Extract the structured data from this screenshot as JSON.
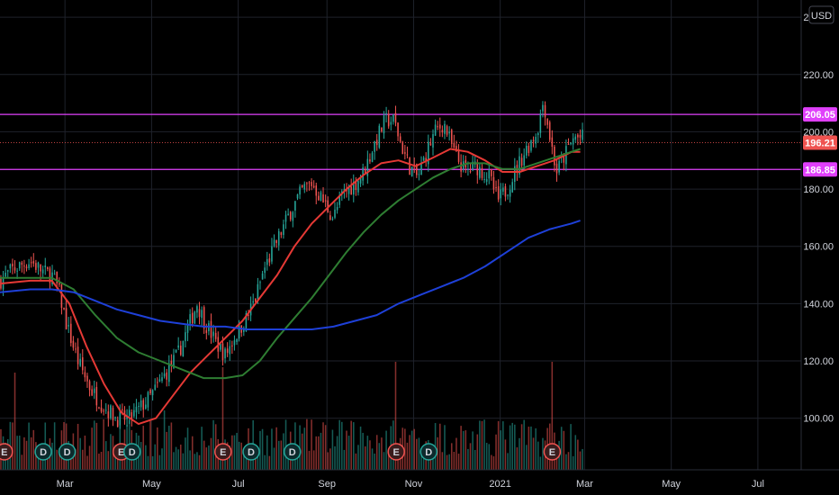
{
  "chart_data": {
    "type": "candlestick",
    "currency": "USD",
    "y_ticks": [
      100,
      120,
      140,
      160,
      180,
      200,
      220,
      240
    ],
    "y_tick_labels": [
      "100.00",
      "120.00",
      "140.00",
      "160.00",
      "180.00",
      "200.00",
      "220.00",
      "240.00"
    ],
    "x_ticks": [
      {
        "label": "Mar",
        "t": 0.3
      },
      {
        "label": "May",
        "t": 2.3
      },
      {
        "label": "Jul",
        "t": 4.3
      },
      {
        "label": "Sep",
        "t": 6.35
      },
      {
        "label": "Nov",
        "t": 8.35
      },
      {
        "label": "2021",
        "t": 10.35
      },
      {
        "label": "Mar",
        "t": 12.3
      },
      {
        "label": "May",
        "t": 14.3
      },
      {
        "label": "Jul",
        "t": 16.3
      }
    ],
    "ylim": [
      82,
      246
    ],
    "xlim": [
      -1.2,
      17.3
    ],
    "price_keypoints": [
      [
        -1.2,
        148
      ],
      [
        -0.9,
        152
      ],
      [
        -0.5,
        155
      ],
      [
        -0.2,
        151
      ],
      [
        0.0,
        150
      ],
      [
        0.15,
        145
      ],
      [
        0.35,
        132
      ],
      [
        0.6,
        120
      ],
      [
        0.9,
        110
      ],
      [
        1.2,
        104
      ],
      [
        1.5,
        100
      ],
      [
        1.8,
        100
      ],
      [
        2.0,
        103
      ],
      [
        2.3,
        108
      ],
      [
        2.6,
        115
      ],
      [
        2.9,
        122
      ],
      [
        3.1,
        130
      ],
      [
        3.35,
        140
      ],
      [
        3.55,
        133
      ],
      [
        3.8,
        126
      ],
      [
        4.0,
        122
      ],
      [
        4.2,
        128
      ],
      [
        4.5,
        135
      ],
      [
        4.7,
        142
      ],
      [
        4.9,
        152
      ],
      [
        5.2,
        162
      ],
      [
        5.5,
        172
      ],
      [
        5.8,
        180
      ],
      [
        6.0,
        182
      ],
      [
        6.25,
        176
      ],
      [
        6.5,
        170
      ],
      [
        6.7,
        178
      ],
      [
        7.0,
        182
      ],
      [
        7.2,
        186
      ],
      [
        7.45,
        196
      ],
      [
        7.7,
        204
      ],
      [
        7.9,
        204
      ],
      [
        8.05,
        196
      ],
      [
        8.25,
        188
      ],
      [
        8.45,
        184
      ],
      [
        8.65,
        193
      ],
      [
        8.85,
        200
      ],
      [
        9.05,
        203
      ],
      [
        9.3,
        192
      ],
      [
        9.55,
        186
      ],
      [
        9.8,
        188
      ],
      [
        10.1,
        184
      ],
      [
        10.3,
        176
      ],
      [
        10.5,
        180
      ],
      [
        10.75,
        188
      ],
      [
        10.95,
        194
      ],
      [
        11.2,
        200
      ],
      [
        11.35,
        211
      ],
      [
        11.5,
        198
      ],
      [
        11.65,
        186
      ],
      [
        11.85,
        192
      ],
      [
        12.05,
        198
      ],
      [
        12.25,
        198
      ]
    ],
    "series": [
      {
        "name": "",
        "color": "#e53935",
        "kind": "ma",
        "points": [
          [
            -1.2,
            147
          ],
          [
            -0.5,
            148
          ],
          [
            0.0,
            148
          ],
          [
            0.4,
            140
          ],
          [
            0.8,
            125
          ],
          [
            1.2,
            112
          ],
          [
            1.6,
            102
          ],
          [
            2.0,
            98
          ],
          [
            2.4,
            100
          ],
          [
            2.8,
            108
          ],
          [
            3.2,
            116
          ],
          [
            3.6,
            122
          ],
          [
            4.0,
            128
          ],
          [
            4.4,
            134
          ],
          [
            4.8,
            142
          ],
          [
            5.2,
            150
          ],
          [
            5.6,
            160
          ],
          [
            6.0,
            168
          ],
          [
            6.4,
            174
          ],
          [
            6.8,
            180
          ],
          [
            7.2,
            185
          ],
          [
            7.6,
            189
          ],
          [
            8.0,
            190
          ],
          [
            8.4,
            188
          ],
          [
            8.8,
            191
          ],
          [
            9.2,
            194
          ],
          [
            9.6,
            193
          ],
          [
            10.0,
            190
          ],
          [
            10.4,
            186
          ],
          [
            10.8,
            186
          ],
          [
            11.2,
            188
          ],
          [
            11.6,
            190
          ],
          [
            12.0,
            193
          ],
          [
            12.2,
            193
          ]
        ]
      },
      {
        "name": "",
        "color": "#2e7d32",
        "kind": "ma",
        "points": [
          [
            -1.2,
            149
          ],
          [
            -0.5,
            149
          ],
          [
            0.0,
            149
          ],
          [
            0.5,
            145
          ],
          [
            1.0,
            136
          ],
          [
            1.5,
            128
          ],
          [
            2.0,
            123
          ],
          [
            2.5,
            120
          ],
          [
            3.0,
            117
          ],
          [
            3.5,
            114
          ],
          [
            4.0,
            114
          ],
          [
            4.4,
            115
          ],
          [
            4.8,
            120
          ],
          [
            5.2,
            128
          ],
          [
            5.6,
            135
          ],
          [
            6.0,
            142
          ],
          [
            6.4,
            150
          ],
          [
            6.8,
            158
          ],
          [
            7.2,
            165
          ],
          [
            7.6,
            171
          ],
          [
            8.0,
            176
          ],
          [
            8.4,
            180
          ],
          [
            8.8,
            184
          ],
          [
            9.2,
            187
          ],
          [
            9.6,
            189
          ],
          [
            10.0,
            189
          ],
          [
            10.4,
            187
          ],
          [
            10.8,
            187
          ],
          [
            11.2,
            189
          ],
          [
            11.6,
            191
          ],
          [
            12.0,
            193
          ],
          [
            12.2,
            194
          ]
        ]
      },
      {
        "name": "",
        "color": "#1e40d8",
        "kind": "ma",
        "points": [
          [
            -1.2,
            144
          ],
          [
            -0.5,
            145
          ],
          [
            0.0,
            145
          ],
          [
            0.5,
            144
          ],
          [
            1.0,
            141
          ],
          [
            1.5,
            138
          ],
          [
            2.0,
            136
          ],
          [
            2.5,
            134
          ],
          [
            3.0,
            133
          ],
          [
            3.5,
            132
          ],
          [
            4.0,
            132
          ],
          [
            4.5,
            131
          ],
          [
            5.0,
            131
          ],
          [
            5.5,
            131
          ],
          [
            6.0,
            131
          ],
          [
            6.5,
            132
          ],
          [
            7.0,
            134
          ],
          [
            7.5,
            136
          ],
          [
            8.0,
            140
          ],
          [
            8.5,
            143
          ],
          [
            9.0,
            146
          ],
          [
            9.5,
            149
          ],
          [
            10.0,
            153
          ],
          [
            10.5,
            158
          ],
          [
            11.0,
            163
          ],
          [
            11.5,
            166
          ],
          [
            12.0,
            168
          ],
          [
            12.2,
            169
          ]
        ]
      }
    ],
    "horizontal_lines": [
      {
        "value": 206.05,
        "label": "206.05",
        "color": "#e040fb",
        "kind": "level"
      },
      {
        "value": 186.85,
        "label": "186.85",
        "color": "#e040fb",
        "kind": "level"
      },
      {
        "value": 196.21,
        "label": "196.21",
        "color": "#ef5350",
        "kind": "last"
      }
    ],
    "events": [
      {
        "type": "E",
        "t": -1.1
      },
      {
        "type": "D",
        "t": -0.2
      },
      {
        "type": "D",
        "t": 0.35
      },
      {
        "type": "E",
        "t": 1.6
      },
      {
        "type": "D",
        "t": 1.85
      },
      {
        "type": "E",
        "t": 3.95
      },
      {
        "type": "D",
        "t": 4.6
      },
      {
        "type": "D",
        "t": 5.55
      },
      {
        "type": "E",
        "t": 7.95
      },
      {
        "type": "D",
        "t": 8.7
      },
      {
        "type": "E",
        "t": 11.55
      }
    ],
    "volume_spikes": [
      [
        -0.85,
        0.9
      ],
      [
        3.95,
        0.95
      ],
      [
        7.95,
        1.0
      ],
      [
        10.3,
        0.45
      ],
      [
        11.55,
        1.0
      ],
      [
        2.6,
        0.55
      ]
    ],
    "candle_count": 250,
    "candle_t_end": 12.25,
    "up_color": "#26a69a",
    "down_color": "#ef5350",
    "grid": true
  }
}
